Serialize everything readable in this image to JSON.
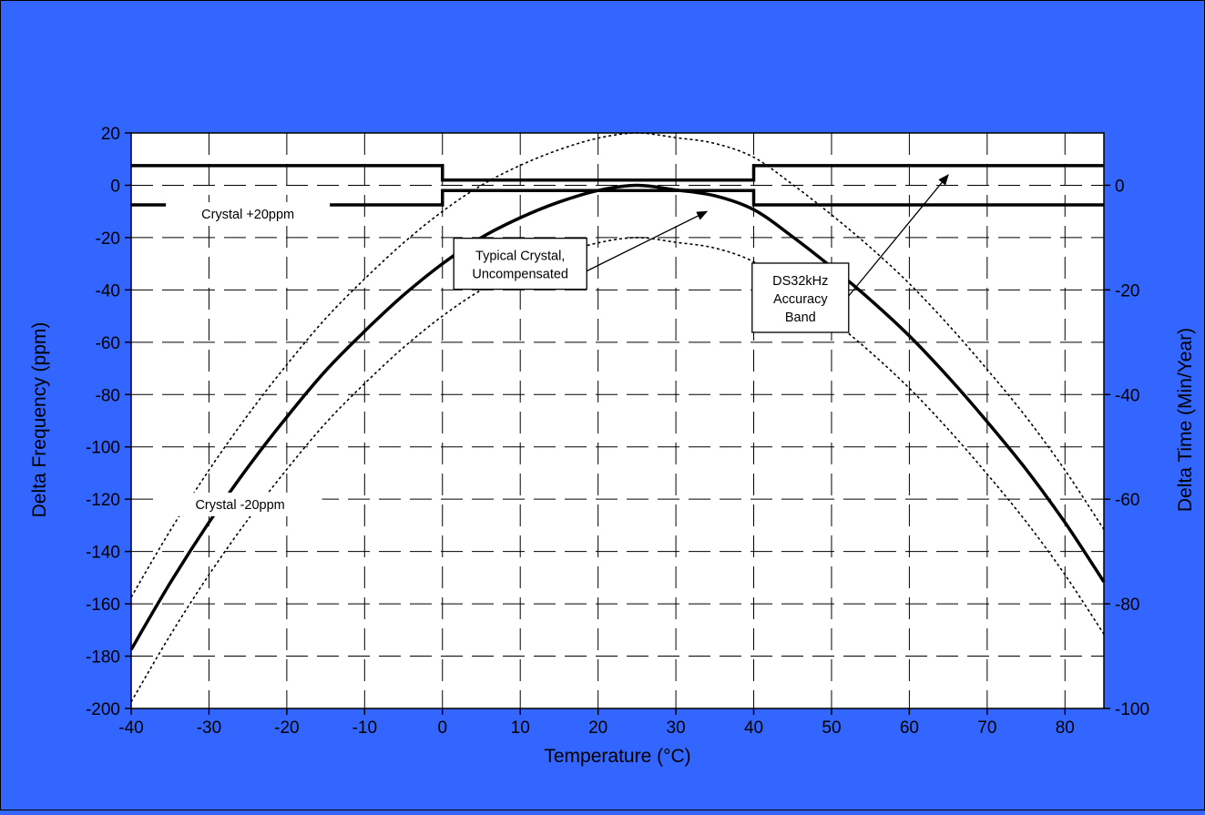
{
  "colors": {
    "background": "#3366ff",
    "plot_area": "#ffffff",
    "curves": "#000000"
  },
  "chart_data": {
    "type": "line",
    "title": "",
    "xlabel": "Temperature (°C)",
    "ylabel": "Delta Frequency (ppm)",
    "y2label": "Delta Time (Min/Year)",
    "xlim": [
      -40,
      85
    ],
    "ylim": [
      -200,
      20
    ],
    "y2lim": [
      -100,
      10
    ],
    "x_ticks": [
      -40,
      -30,
      -20,
      -10,
      0,
      10,
      20,
      30,
      40,
      50,
      60,
      70,
      80
    ],
    "y_ticks": [
      20,
      0,
      -20,
      -40,
      -60,
      -80,
      -100,
      -120,
      -140,
      -160,
      -180,
      -200
    ],
    "y2_ticks": [
      0,
      -20,
      -40,
      -60,
      -80,
      -100
    ],
    "grid": true,
    "grid_style": "dashed",
    "legend": "none",
    "series": [
      {
        "style": "solid-thick",
        "points": [
          [
            -40,
            -177.5
          ],
          [
            -35,
            -152.1
          ],
          [
            -30,
            -128.9
          ],
          [
            -25,
            -107.8
          ],
          [
            -20,
            -88.6
          ],
          [
            -15,
            -70.9
          ],
          [
            -10,
            -55.8
          ],
          [
            -5,
            -42
          ],
          [
            0,
            -30
          ],
          [
            5,
            -20
          ],
          [
            10,
            -12.4
          ],
          [
            15,
            -6.4
          ],
          [
            20,
            -2
          ],
          [
            25,
            0
          ],
          [
            30,
            -1.8
          ],
          [
            35,
            -4
          ],
          [
            40,
            -9.3
          ],
          [
            45,
            -19.7
          ],
          [
            50,
            -31.3
          ],
          [
            55,
            -43.8
          ],
          [
            60,
            -57.6
          ],
          [
            65,
            -73.3
          ],
          [
            70,
            -90.4
          ],
          [
            75,
            -108.6
          ],
          [
            80,
            -128.9
          ],
          [
            85,
            -151.6
          ]
        ]
      },
      {
        "style": "dotted",
        "points": [
          [
            -40,
            -157.5
          ],
          [
            -35,
            -132.1
          ],
          [
            -30,
            -108.9
          ],
          [
            -25,
            -87.8
          ],
          [
            -20,
            -68.6
          ],
          [
            -15,
            -50.9
          ],
          [
            -10,
            -35.8
          ],
          [
            -5,
            -22
          ],
          [
            0,
            -10
          ],
          [
            5,
            0
          ],
          [
            10,
            7.6
          ],
          [
            15,
            13.6
          ],
          [
            20,
            18
          ],
          [
            25,
            20
          ],
          [
            30,
            18.2
          ],
          [
            35,
            16
          ],
          [
            40,
            10.7
          ],
          [
            45,
            0.3
          ],
          [
            50,
            -11.3
          ],
          [
            55,
            -23.8
          ],
          [
            60,
            -37.6
          ],
          [
            65,
            -53.3
          ],
          [
            70,
            -70.4
          ],
          [
            75,
            -88.6
          ],
          [
            80,
            -108.9
          ],
          [
            85,
            -131.6
          ]
        ]
      },
      {
        "style": "dotted",
        "points": [
          [
            -40,
            -197.5
          ],
          [
            -35,
            -172.1
          ],
          [
            -30,
            -148.9
          ],
          [
            -25,
            -127.8
          ],
          [
            -20,
            -108.6
          ],
          [
            -15,
            -90.9
          ],
          [
            -10,
            -75.8
          ],
          [
            -5,
            -62
          ],
          [
            0,
            -50
          ],
          [
            5,
            -40
          ],
          [
            10,
            -32.4
          ],
          [
            15,
            -26.4
          ],
          [
            20,
            -22
          ],
          [
            25,
            -20
          ],
          [
            30,
            -21.8
          ],
          [
            35,
            -24
          ],
          [
            40,
            -29.3
          ],
          [
            45,
            -39.7
          ],
          [
            50,
            -51.3
          ],
          [
            55,
            -63.8
          ],
          [
            60,
            -77.6
          ],
          [
            65,
            -93.3
          ],
          [
            70,
            -110.4
          ],
          [
            75,
            -128.6
          ],
          [
            80,
            -148.9
          ],
          [
            85,
            -171.6
          ]
        ]
      },
      {
        "style": "step-thick",
        "points": [
          [
            -40,
            7.5
          ],
          [
            0,
            7.5
          ],
          [
            0,
            2
          ],
          [
            40,
            2
          ],
          [
            40,
            7.5
          ],
          [
            85,
            7.5
          ]
        ]
      },
      {
        "style": "step-thick",
        "points": [
          [
            -40,
            -7.5
          ],
          [
            0,
            -7.5
          ],
          [
            0,
            -2
          ],
          [
            40,
            -2
          ],
          [
            40,
            -7.5
          ],
          [
            85,
            -7.5
          ]
        ]
      }
    ],
    "annotations": [
      {
        "id": "crystal-plus",
        "text": "Crystal +20ppm",
        "x": -25,
        "y": -11,
        "boxed": false
      },
      {
        "id": "crystal-minus",
        "text": "Crystal -20ppm",
        "x": -26,
        "y": -122,
        "boxed": false
      },
      {
        "id": "typical-crystal",
        "lines": [
          "Typical Crystal,",
          "Uncompensated"
        ],
        "x": 10,
        "y": -30,
        "boxed": true,
        "arrow_to": [
          34,
          -10
        ]
      },
      {
        "id": "accuracy-band",
        "lines": [
          "DS32kHz",
          "Accuracy",
          "Band"
        ],
        "x": 46,
        "y": -43,
        "boxed": true,
        "arrow_to": [
          65,
          4
        ]
      }
    ]
  }
}
